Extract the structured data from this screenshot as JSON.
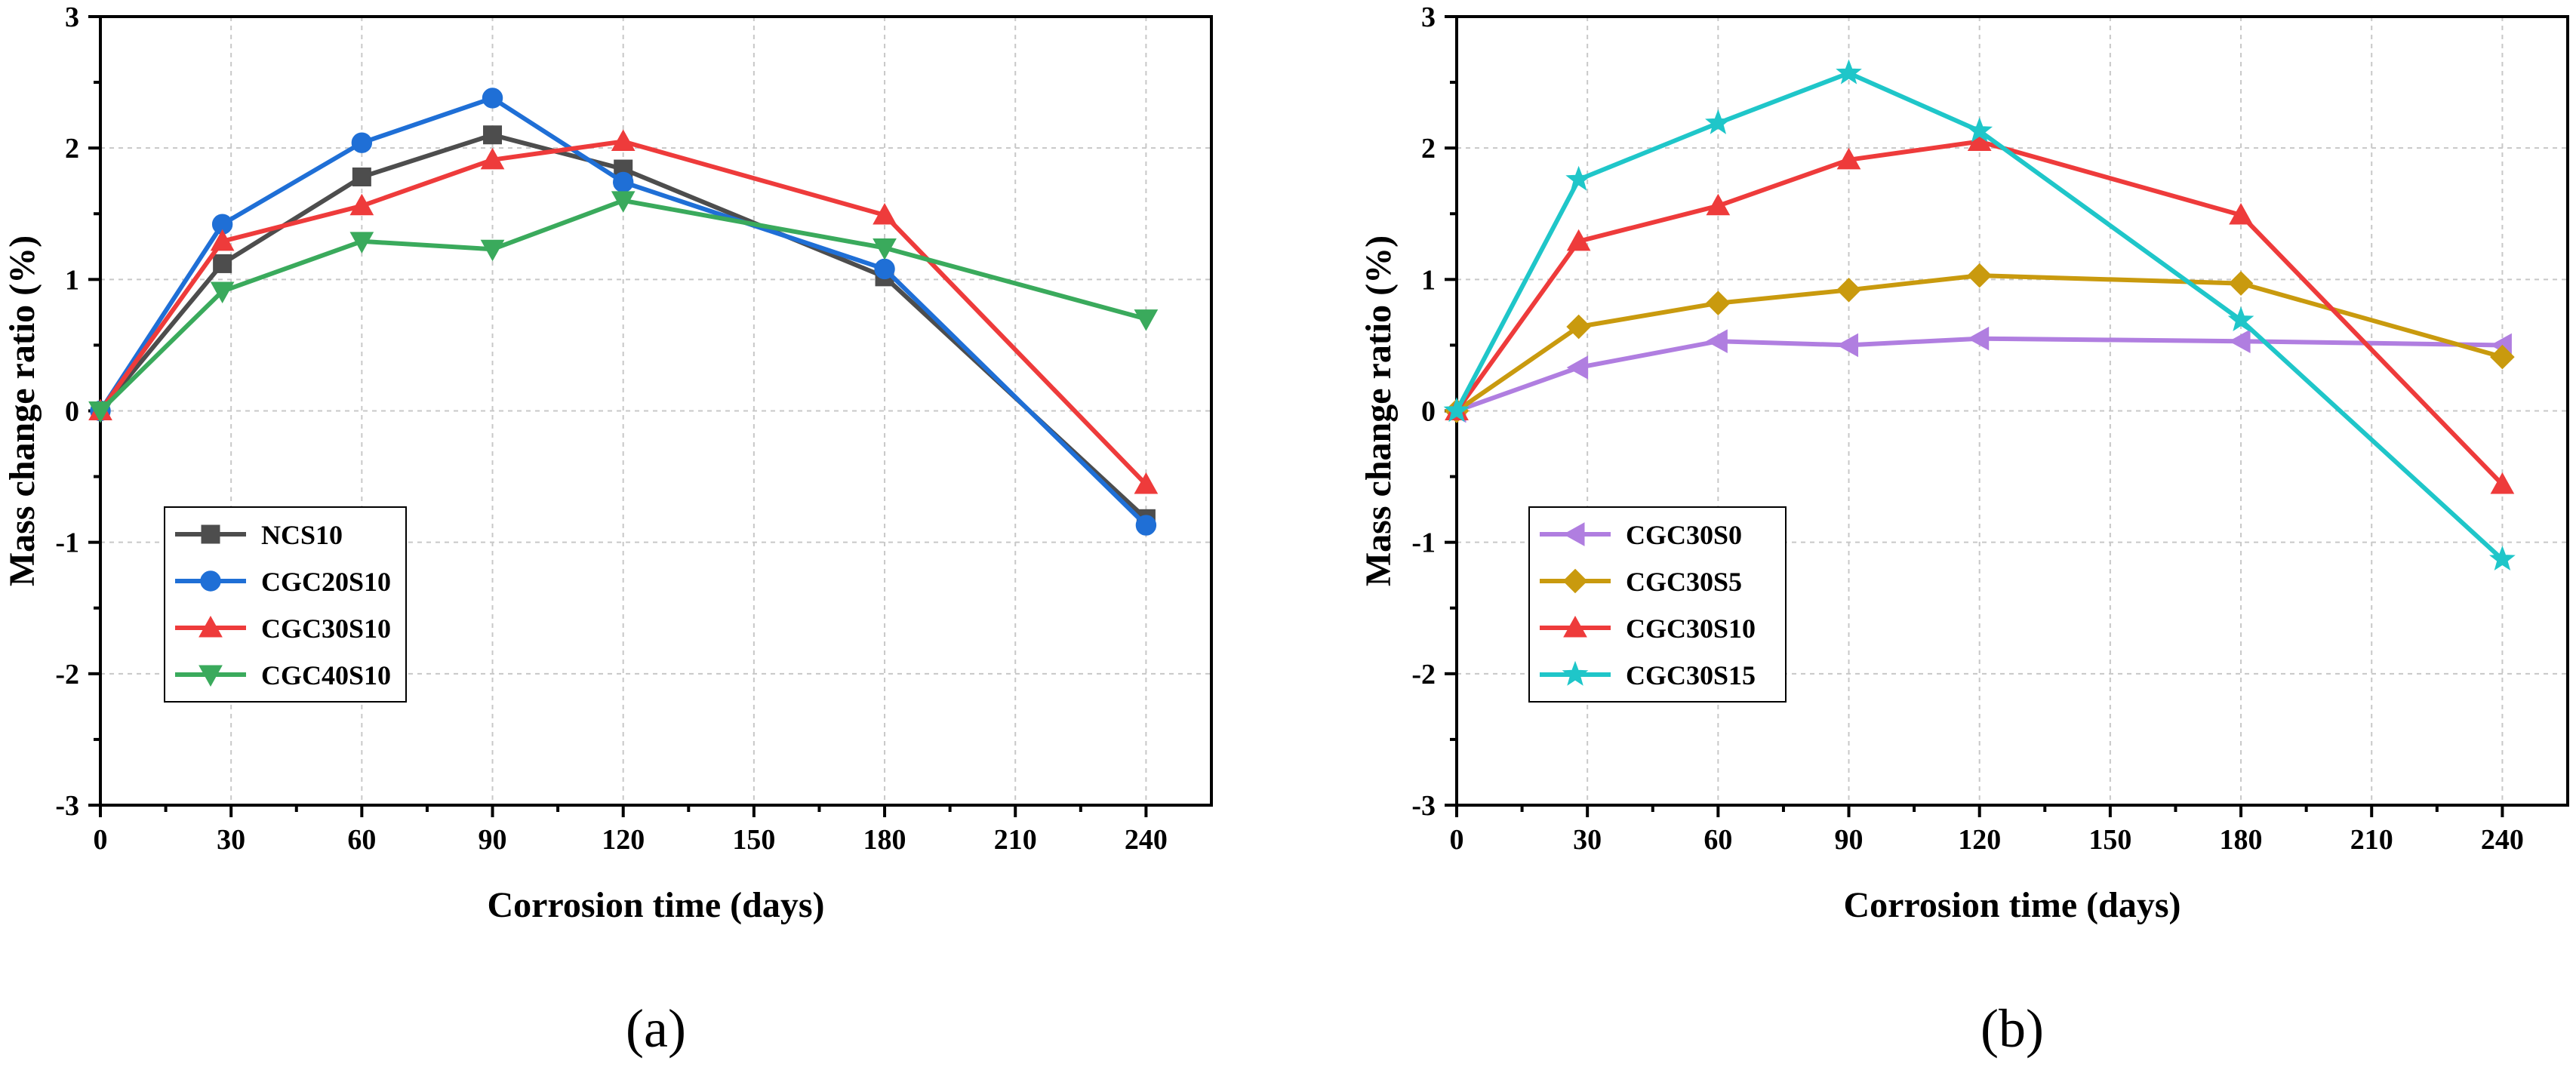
{
  "chart_data": [
    {
      "type": "line",
      "panel_label": "(a)",
      "xlabel": "Corrosion time (days)",
      "ylabel": "Mass change ratio (%)",
      "xlim": [
        0,
        255
      ],
      "ylim": [
        -3,
        3
      ],
      "xticks": [
        0,
        30,
        60,
        90,
        120,
        150,
        180,
        210,
        240
      ],
      "yticks": [
        -3,
        -2,
        -1,
        0,
        1,
        2,
        3
      ],
      "grid": true,
      "legend_position": "lower-left",
      "series": [
        {
          "name": "NCS10",
          "color": "#4d4d4d",
          "marker": "square",
          "x": [
            0,
            28,
            60,
            90,
            120,
            180,
            240
          ],
          "y": [
            0,
            1.12,
            1.78,
            2.1,
            1.84,
            1.02,
            -0.82
          ]
        },
        {
          "name": "CGC20S10",
          "color": "#1f6fd6",
          "marker": "circle",
          "x": [
            0,
            28,
            60,
            90,
            120,
            180,
            240
          ],
          "y": [
            0,
            1.42,
            2.04,
            2.38,
            1.74,
            1.08,
            -0.87
          ]
        },
        {
          "name": "CGC30S10",
          "color": "#ee3b3b",
          "marker": "triangle-up",
          "x": [
            0,
            28,
            60,
            90,
            120,
            180,
            240
          ],
          "y": [
            0,
            1.29,
            1.56,
            1.91,
            2.05,
            1.49,
            -0.56
          ]
        },
        {
          "name": "CGC40S10",
          "color": "#3aaa5c",
          "marker": "triangle-down",
          "x": [
            0,
            28,
            60,
            90,
            120,
            180,
            240
          ],
          "y": [
            0,
            0.91,
            1.29,
            1.23,
            1.6,
            1.24,
            0.7
          ]
        }
      ]
    },
    {
      "type": "line",
      "panel_label": "(b)",
      "xlabel": "Corrosion time (days)",
      "ylabel": "Mass change ratio (%)",
      "xlim": [
        0,
        255
      ],
      "ylim": [
        -3,
        3
      ],
      "xticks": [
        0,
        30,
        60,
        90,
        120,
        150,
        180,
        210,
        240
      ],
      "yticks": [
        -3,
        -2,
        -1,
        0,
        1,
        2,
        3
      ],
      "grid": true,
      "legend_position": "lower-left",
      "series": [
        {
          "name": "CGC30S0",
          "color": "#b07ee0",
          "marker": "triangle-left",
          "x": [
            0,
            28,
            60,
            90,
            120,
            180,
            240
          ],
          "y": [
            0,
            0.33,
            0.53,
            0.5,
            0.55,
            0.53,
            0.5
          ]
        },
        {
          "name": "CGC30S5",
          "color": "#c99a0e",
          "marker": "diamond",
          "x": [
            0,
            28,
            60,
            90,
            120,
            180,
            240
          ],
          "y": [
            0,
            0.64,
            0.82,
            0.92,
            1.03,
            0.97,
            0.41
          ]
        },
        {
          "name": "CGC30S10",
          "color": "#ee3b3b",
          "marker": "triangle-up",
          "x": [
            0,
            28,
            60,
            90,
            120,
            180,
            240
          ],
          "y": [
            0,
            1.29,
            1.56,
            1.91,
            2.05,
            1.49,
            -0.56
          ]
        },
        {
          "name": "CGC30S15",
          "color": "#1fc6c9",
          "marker": "star",
          "x": [
            0,
            28,
            60,
            90,
            120,
            180,
            240
          ],
          "y": [
            0,
            1.76,
            2.19,
            2.57,
            2.13,
            0.69,
            -1.13
          ]
        }
      ]
    }
  ]
}
